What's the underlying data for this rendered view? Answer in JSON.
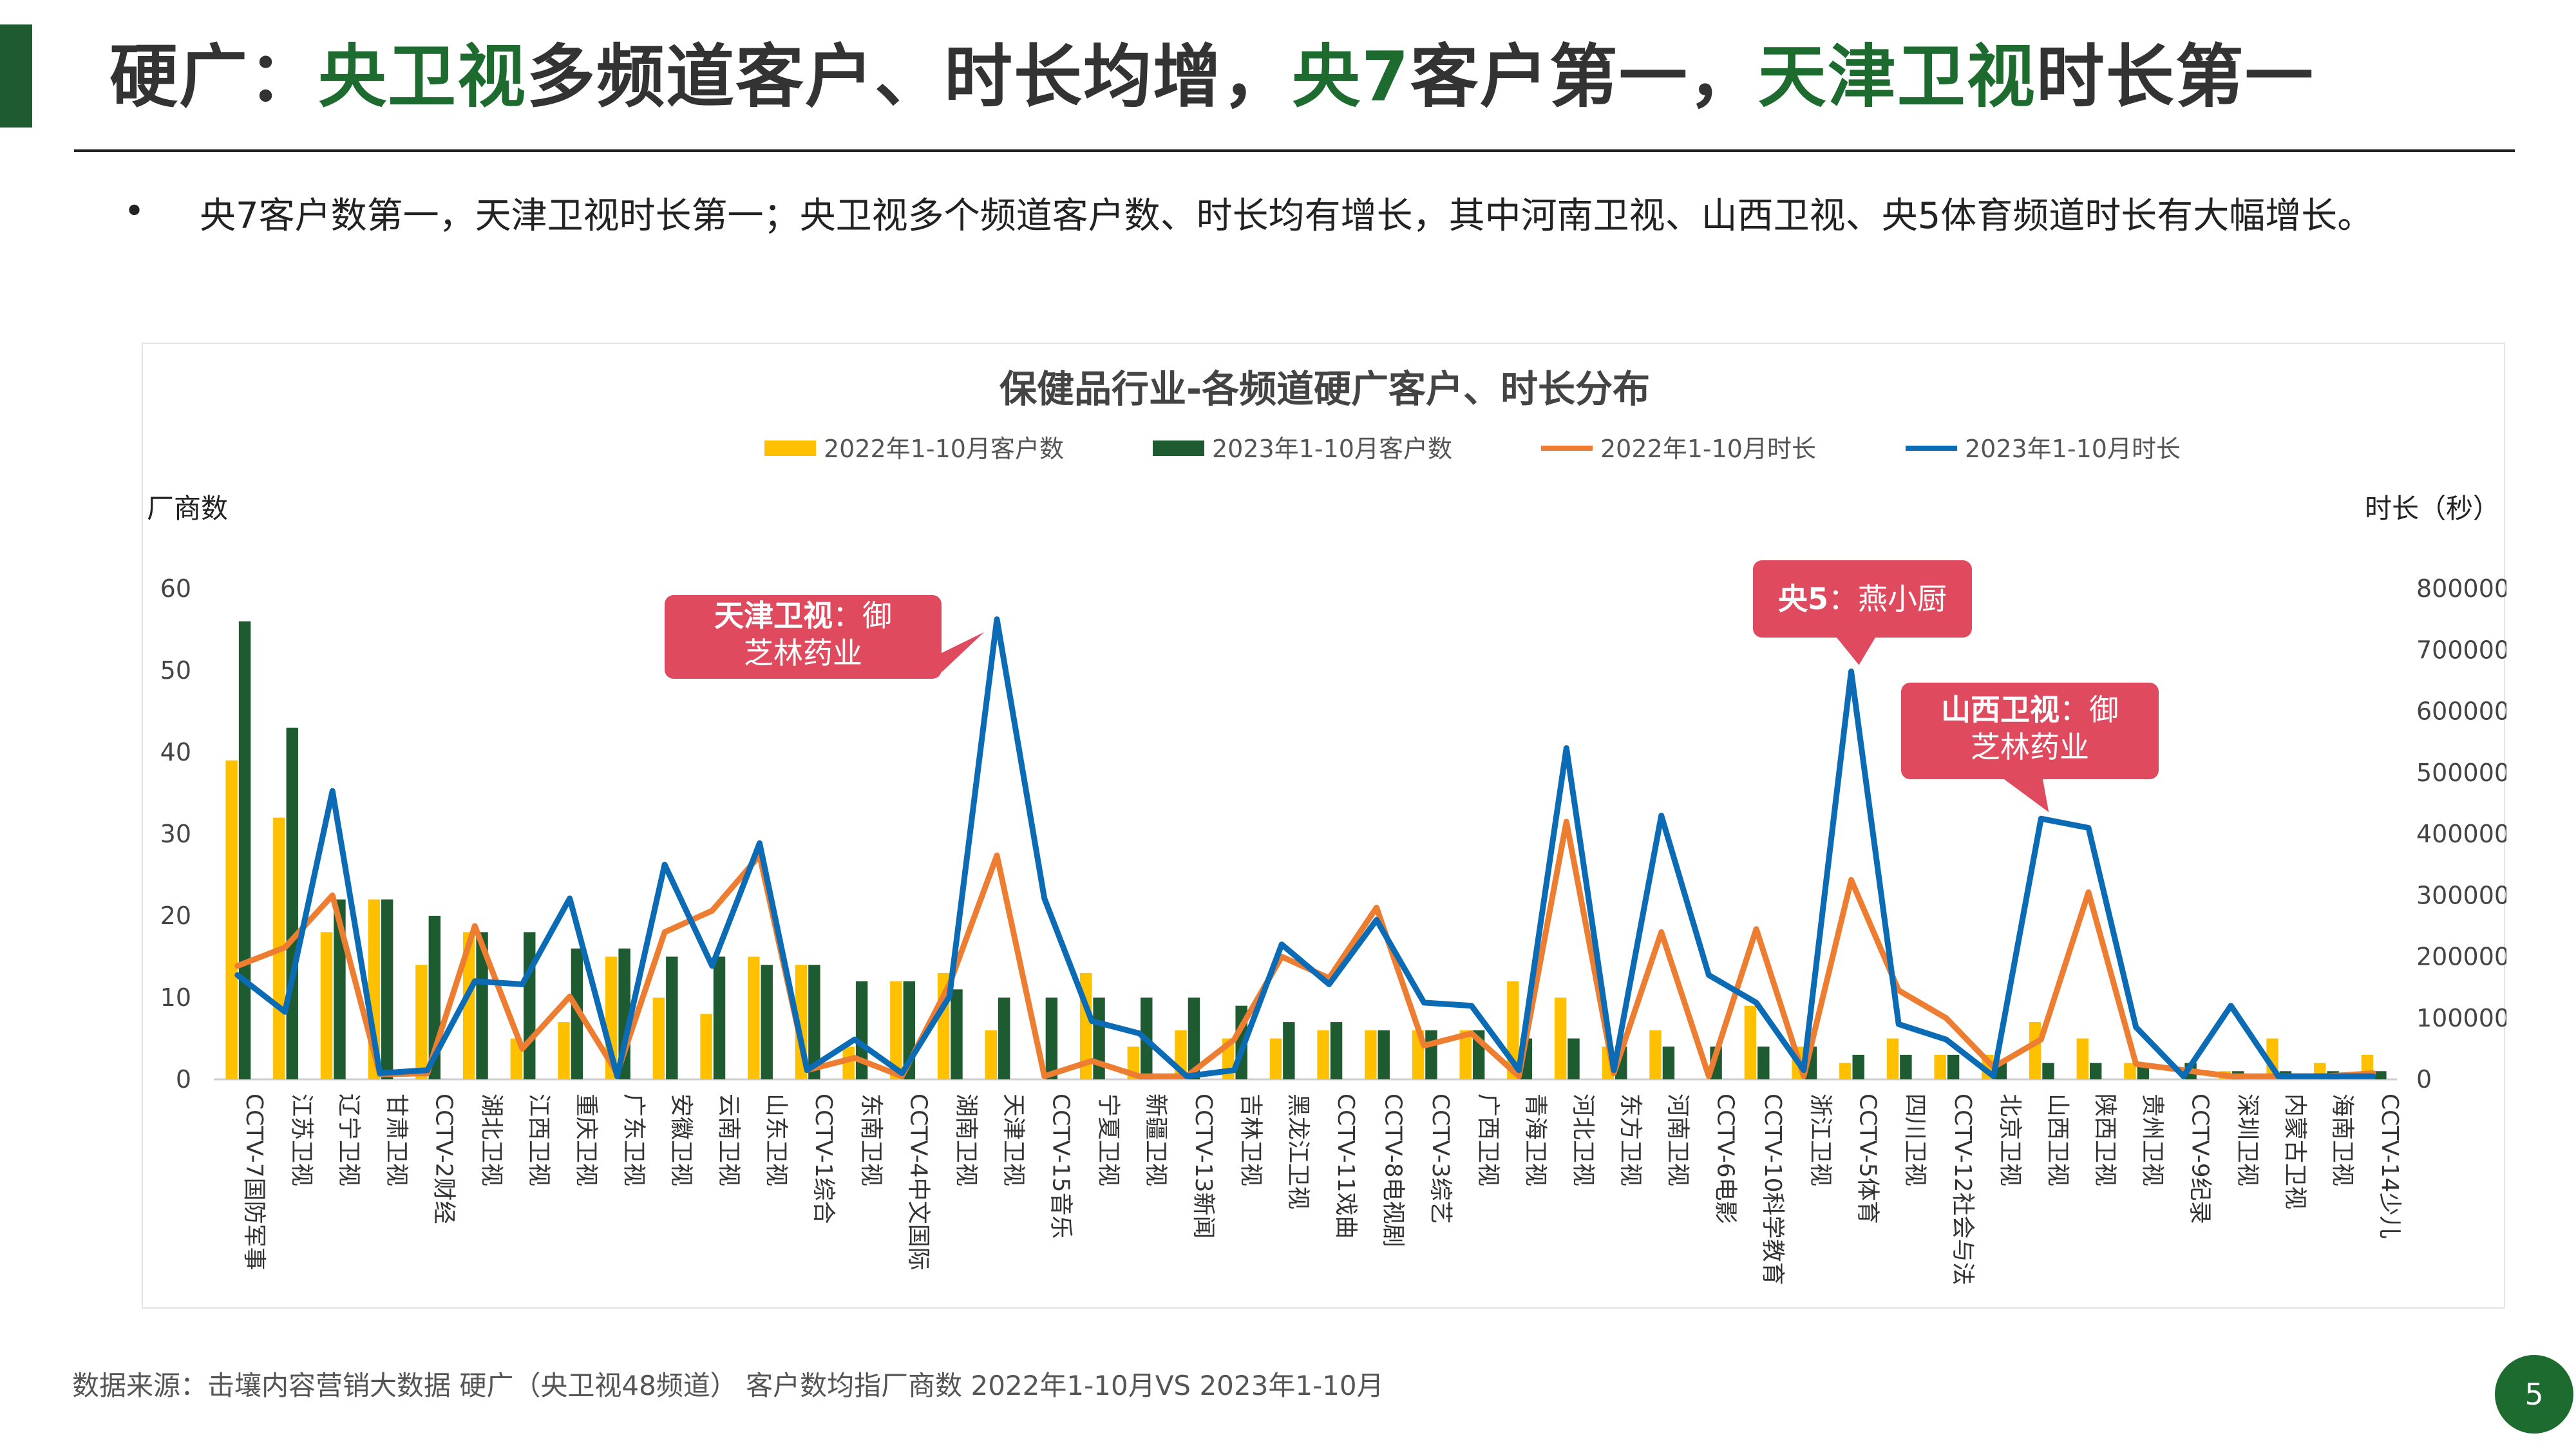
{
  "header": {
    "title_parts": [
      {
        "text": "硬广：",
        "hl": false
      },
      {
        "text": "央卫视",
        "hl": true
      },
      {
        "text": "多频道客户、时长均增，",
        "hl": false
      },
      {
        "text": "央7",
        "hl": true
      },
      {
        "text": "客户第一，",
        "hl": false
      },
      {
        "text": "天津卫视",
        "hl": true
      },
      {
        "text": "时长第一",
        "hl": false
      }
    ]
  },
  "bullet": {
    "marker": "•",
    "text": "央7客户数第一，天津卫视时长第一；央卫视多个频道客户数、时长均有增长，其中河南卫视、山西卫视、央5体育频道时长有大幅增长。"
  },
  "footer": {
    "source": "数据来源：击壤内容营销大数据 硬广（央卫视48频道）  客户数均指厂商数   2022年1-10月VS 2023年1-10月",
    "page": "5"
  },
  "colors": {
    "bar_2022": "#ffc000",
    "bar_2023": "#1e5b30",
    "line_2022": "#ed7d31",
    "line_2023": "#0b6cb5",
    "callout": "#e04a5f",
    "accent": "#1e6b30"
  },
  "chart_data": {
    "type": "bar",
    "title": "保健品行业-各频道硬广客户、时长分布",
    "ylabel": "厂商数",
    "y2label": "时长（秒）",
    "ylim": [
      0,
      60
    ],
    "y_ticks": [
      0,
      10,
      20,
      30,
      40,
      50,
      60
    ],
    "y2lim": [
      0,
      800000
    ],
    "y2_ticks": [
      0,
      100000,
      200000,
      300000,
      400000,
      500000,
      600000,
      700000,
      800000
    ],
    "legend_position": "top",
    "grid": false,
    "categories": [
      "CCTV-7国防军事",
      "江苏卫视",
      "辽宁卫视",
      "甘肃卫视",
      "CCTV-2财经",
      "湖北卫视",
      "江西卫视",
      "重庆卫视",
      "广东卫视",
      "安徽卫视",
      "云南卫视",
      "山东卫视",
      "CCTV-1综合",
      "东南卫视",
      "CCTV-4中文国际",
      "湖南卫视",
      "天津卫视",
      "CCTV-15音乐",
      "宁夏卫视",
      "新疆卫视",
      "CCTV-13新闻",
      "吉林卫视",
      "黑龙江卫视",
      "CCTV-11戏曲",
      "CCTV-8电视剧",
      "CCTV-3综艺",
      "广西卫视",
      "青海卫视",
      "河北卫视",
      "东方卫视",
      "河南卫视",
      "CCTV-6电影",
      "CCTV-10科学教育",
      "浙江卫视",
      "CCTV-5体育",
      "四川卫视",
      "CCTV-12社会与法",
      "北京卫视",
      "山西卫视",
      "陕西卫视",
      "贵州卫视",
      "CCTV-9纪录",
      "深圳卫视",
      "内蒙古卫视",
      "海南卫视",
      "CCTV-14少儿"
    ],
    "series": [
      {
        "name": "2022年1-10月客户数",
        "kind": "bar",
        "axis": "left",
        "values": [
          39,
          32,
          18,
          22,
          14,
          18,
          5,
          7,
          15,
          10,
          8,
          15,
          14,
          4,
          12,
          13,
          6,
          0,
          13,
          4,
          6,
          5,
          5,
          6,
          6,
          6,
          6,
          12,
          10,
          4,
          6,
          0,
          9,
          4,
          2,
          5,
          3,
          3,
          7,
          5,
          2,
          0,
          1,
          5,
          2,
          3
        ]
      },
      {
        "name": "2023年1-10月客户数",
        "kind": "bar",
        "axis": "right_of_pair",
        "values": [
          56,
          43,
          22,
          22,
          20,
          18,
          18,
          16,
          16,
          15,
          15,
          14,
          14,
          12,
          12,
          11,
          10,
          10,
          10,
          10,
          10,
          9,
          7,
          7,
          6,
          6,
          6,
          5,
          5,
          4,
          4,
          4,
          4,
          4,
          3,
          3,
          3,
          2,
          2,
          2,
          2,
          2,
          1,
          1,
          1,
          1
        ]
      },
      {
        "name": "2022年1-10月时长",
        "kind": "line",
        "axis": "right",
        "values": [
          185000,
          215000,
          300000,
          8000,
          10000,
          250000,
          50000,
          135000,
          10000,
          240000,
          275000,
          365000,
          15000,
          35000,
          5000,
          155000,
          365000,
          5000,
          30000,
          5000,
          5000,
          65000,
          200000,
          165000,
          280000,
          55000,
          75000,
          5000,
          420000,
          10000,
          240000,
          5000,
          245000,
          5000,
          325000,
          145000,
          100000,
          20000,
          65000,
          305000,
          25000,
          15000,
          5000,
          5000,
          5000,
          10000
        ]
      },
      {
        "name": "2023年1-10月时长",
        "kind": "line",
        "axis": "right",
        "values": [
          170000,
          110000,
          470000,
          10000,
          15000,
          160000,
          155000,
          295000,
          5000,
          350000,
          185000,
          385000,
          15000,
          65000,
          10000,
          135000,
          750000,
          295000,
          95000,
          75000,
          5000,
          15000,
          220000,
          155000,
          260000,
          125000,
          120000,
          15000,
          540000,
          15000,
          430000,
          170000,
          125000,
          15000,
          665000,
          90000,
          65000,
          5000,
          425000,
          410000,
          85000,
          5000,
          120000,
          5000,
          5000,
          5000
        ]
      }
    ],
    "annotations": [
      {
        "category": "天津卫视",
        "bold": "天津卫视",
        "text": "：御芝林药业",
        "line1_bold": "天津卫视",
        "line1": "：御",
        "line2": "芝林药业"
      },
      {
        "category": "CCTV-5体育",
        "bold": "央5",
        "text": "：燕小厨",
        "line1_bold": "央5",
        "line1": "：燕小厨",
        "line2": ""
      },
      {
        "category": "山西卫视",
        "bold": "山西卫视",
        "text": "：御芝林药业",
        "line1_bold": "山西卫视",
        "line1": "：御",
        "line2": "芝林药业"
      }
    ]
  }
}
